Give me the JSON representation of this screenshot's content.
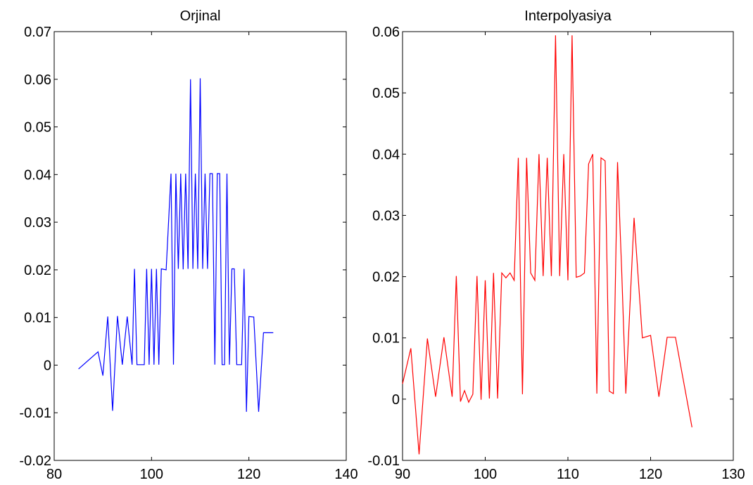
{
  "chart_data": [
    {
      "type": "line",
      "title": "Orjinal",
      "xlabel": "",
      "ylabel": "",
      "xlim": [
        80,
        140
      ],
      "ylim": [
        -0.02,
        0.07
      ],
      "xticks": [
        80,
        100,
        120,
        140
      ],
      "xtick_labels": [
        "80",
        "100",
        "120",
        "140"
      ],
      "yticks": [
        -0.02,
        -0.01,
        0,
        0.01,
        0.02,
        0.03,
        0.04,
        0.05,
        0.06,
        0.07
      ],
      "ytick_labels": [
        "-0.02",
        "-0.01",
        "0",
        "0.01",
        "0.02",
        "0.03",
        "0.04",
        "0.05",
        "0.06",
        "0.07"
      ],
      "grid": false,
      "series": [
        {
          "color": "#0000ff",
          "x": [
            85,
            89,
            90,
            91,
            92,
            93,
            94,
            95,
            96,
            96.5,
            97,
            98.5,
            99,
            99.5,
            100,
            100.5,
            101,
            101.5,
            102,
            103,
            104,
            104.5,
            105,
            105.5,
            106,
            106.5,
            107,
            107.5,
            108,
            108.5,
            109,
            109.5,
            110,
            110.5,
            111,
            111.5,
            112,
            112.5,
            113,
            113.5,
            114,
            114.5,
            115,
            115.5,
            116,
            116.5,
            117,
            117.5,
            118,
            118.5,
            119,
            119.5,
            120,
            121,
            122,
            123,
            124,
            125
          ],
          "y": [
            -0.0008,
            0.0028,
            -0.0022,
            0.0102,
            -0.0096,
            0.0103,
            0.0001,
            0.0102,
            0.0001,
            0.0202,
            0.0001,
            0.0001,
            0.0202,
            0.0001,
            0.0202,
            0.0001,
            0.0202,
            0.0001,
            0.0202,
            0.02,
            0.0402,
            0.0001,
            0.0402,
            0.0202,
            0.0402,
            0.0201,
            0.0402,
            0.0202,
            0.06,
            0.0202,
            0.0402,
            0.0202,
            0.0602,
            0.0202,
            0.0402,
            0.0202,
            0.0402,
            0.0402,
            0.0001,
            0.0402,
            0.0402,
            0.0001,
            0.0001,
            0.0402,
            0.0001,
            0.0202,
            0.0202,
            0.0001,
            0.0001,
            0.0001,
            0.0202,
            -0.0098,
            0.0102,
            0.0101,
            -0.0098,
            0.0068,
            0.0068,
            0.0068
          ]
        }
      ]
    },
    {
      "type": "line",
      "title": "Interpolyasiya",
      "xlabel": "",
      "ylabel": "",
      "xlim": [
        90,
        130
      ],
      "ylim": [
        -0.01,
        0.06
      ],
      "xticks": [
        90,
        100,
        110,
        120,
        130
      ],
      "xtick_labels": [
        "90",
        "100",
        "110",
        "120",
        "130"
      ],
      "yticks": [
        -0.01,
        0,
        0.01,
        0.02,
        0.03,
        0.04,
        0.05,
        0.06
      ],
      "ytick_labels": [
        "-0.01",
        "0",
        "0.01",
        "0.02",
        "0.03",
        "0.04",
        "0.05",
        "0.06"
      ],
      "grid": false,
      "series": [
        {
          "color": "#ff0000",
          "x": [
            90,
            91,
            92,
            93,
            94,
            95,
            96,
            96.5,
            97,
            97.5,
            98,
            98.5,
            99,
            99.5,
            100,
            100.5,
            101,
            101.5,
            102,
            102.5,
            103,
            103.5,
            104,
            104.5,
            105,
            105.5,
            106,
            106.5,
            107,
            107.5,
            108,
            108.5,
            109,
            109.5,
            110,
            110.5,
            111,
            111.5,
            112,
            112.5,
            113,
            113.5,
            114,
            114.5,
            115,
            115.5,
            116,
            116.5,
            117,
            118,
            119,
            120,
            121,
            122,
            123,
            125
          ],
          "y": [
            0.0025,
            0.0083,
            -0.009,
            0.0099,
            0.0004,
            0.0101,
            0.0004,
            0.0201,
            -0.0004,
            0.0014,
            -0.0005,
            0.0008,
            0.0201,
            -0.0001,
            0.0194,
            0.0001,
            0.0206,
            0.0001,
            0.0206,
            0.0198,
            0.0206,
            0.0194,
            0.0394,
            0.0008,
            0.0394,
            0.0206,
            0.0194,
            0.04,
            0.0201,
            0.0394,
            0.0201,
            0.0594,
            0.0201,
            0.04,
            0.0194,
            0.0594,
            0.0199,
            0.0201,
            0.0206,
            0.0384,
            0.04,
            0.0009,
            0.0394,
            0.0389,
            0.0013,
            0.0009,
            0.0387,
            0.021,
            0.0009,
            0.0296,
            0.01,
            0.0104,
            0.0004,
            0.0101,
            0.0101,
            -0.0046
          ]
        }
      ]
    }
  ]
}
